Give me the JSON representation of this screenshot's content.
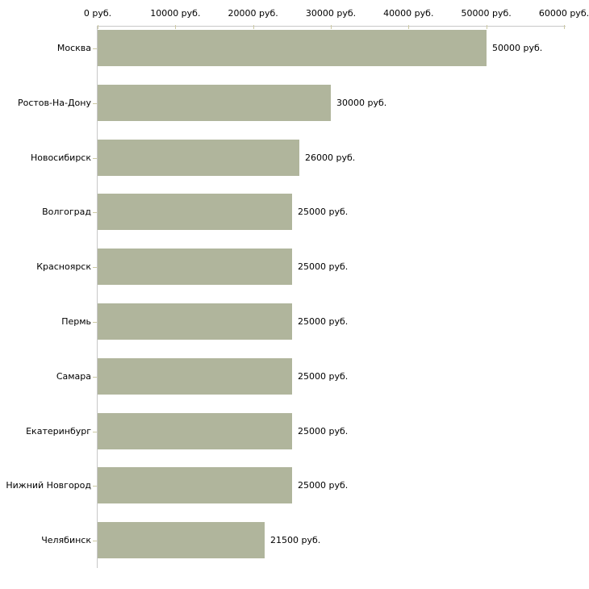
{
  "chart_data": {
    "type": "bar",
    "orientation": "horizontal",
    "title": "",
    "xlabel": "",
    "ylabel": "",
    "unit": "руб.",
    "categories": [
      "Москва",
      "Ростов-На-Дону",
      "Новосибирск",
      "Волгоград",
      "Красноярск",
      "Пермь",
      "Самара",
      "Екатеринбург",
      "Нижний Новгород",
      "Челябинск"
    ],
    "values": [
      50000,
      30000,
      26000,
      25000,
      25000,
      25000,
      25000,
      25000,
      25000,
      21500
    ],
    "value_labels": [
      "50000 руб.",
      "30000 руб.",
      "26000 руб.",
      "25000 руб.",
      "25000 руб.",
      "25000 руб.",
      "25000 руб.",
      "25000 руб.",
      "25000 руб.",
      "21500 руб."
    ],
    "x_tick_values": [
      0,
      10000,
      20000,
      30000,
      40000,
      50000,
      60000
    ],
    "x_tick_labels": [
      "0 руб.",
      "10000 руб.",
      "20000 руб.",
      "30000 руб.",
      "40000 руб.",
      "50000 руб.",
      "60000 руб."
    ],
    "xlim": [
      0,
      60000
    ],
    "grid": false,
    "legend": "none",
    "colors": {
      "bar": "#b0b59c",
      "axis_line": "#c8c8c8",
      "tick_mark": "#ccc9a3",
      "text": "#000000",
      "background": "#ffffff"
    }
  }
}
